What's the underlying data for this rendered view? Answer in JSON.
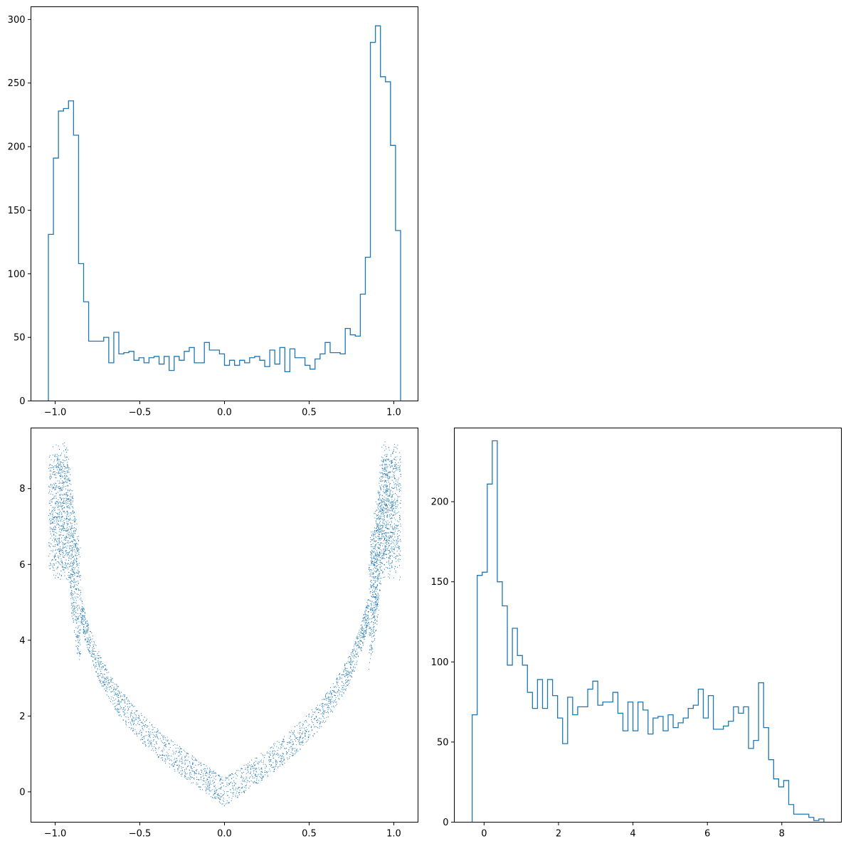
{
  "colors": {
    "series": "#1f77b4",
    "axes": "#000000",
    "background": "#ffffff"
  },
  "chart_data": [
    {
      "id": "hist_x",
      "type": "histogram",
      "title": "",
      "xlabel": "",
      "ylabel": "",
      "xlim": [
        -1.143,
        1.143
      ],
      "ylim": [
        0,
        310
      ],
      "x_ticks": [
        -1.0,
        -0.5,
        0.0,
        0.5,
        1.0
      ],
      "x_tick_labels": [
        "−1.0",
        "−0.5",
        "0.0",
        "0.5",
        "1.0"
      ],
      "y_ticks": [
        0,
        50,
        100,
        150,
        200,
        250,
        300
      ],
      "y_tick_labels": [
        "0",
        "50",
        "100",
        "150",
        "200",
        "250",
        "300"
      ],
      "bin_start": -1.04,
      "bin_end": 1.04,
      "counts": [
        131,
        191,
        228,
        230,
        236,
        209,
        108,
        78,
        47,
        47,
        47,
        50,
        30,
        54,
        37,
        38,
        39,
        32,
        34,
        30,
        34,
        35,
        29,
        35,
        24,
        35,
        32,
        39,
        42,
        30,
        30,
        46,
        40,
        40,
        37,
        28,
        32,
        28,
        32,
        30,
        34,
        35,
        32,
        27,
        40,
        29,
        42,
        23,
        41,
        34,
        34,
        28,
        25,
        33,
        37,
        46,
        38,
        38,
        37,
        57,
        52,
        51,
        84,
        113,
        282,
        295,
        255,
        251,
        201,
        134
      ]
    },
    {
      "id": "scatter_xy",
      "type": "scatter",
      "title": "",
      "xlabel": "",
      "ylabel": "",
      "xlim": [
        -1.143,
        1.143
      ],
      "ylim": [
        -0.8,
        9.6
      ],
      "x_ticks": [
        -1.0,
        -0.5,
        0.0,
        0.5,
        1.0
      ],
      "x_tick_labels": [
        "−1.0",
        "−0.5",
        "0.0",
        "0.5",
        "1.0"
      ],
      "y_ticks": [
        0,
        2,
        4,
        6,
        8
      ],
      "y_tick_labels": [
        "0",
        "2",
        "4",
        "6",
        "8"
      ],
      "shape": "y ≈ 3·√(1/(1−x²) − 1) band, point density follows the two histograms"
    },
    {
      "id": "hist_y",
      "type": "histogram",
      "title": "",
      "xlabel": "",
      "ylabel": "",
      "xlim": [
        -0.8,
        9.6
      ],
      "ylim": [
        0,
        246
      ],
      "x_ticks": [
        0,
        2,
        4,
        6,
        8
      ],
      "x_tick_labels": [
        "0",
        "2",
        "4",
        "6",
        "8"
      ],
      "y_ticks": [
        0,
        50,
        100,
        150,
        200
      ],
      "y_tick_labels": [
        "0",
        "50",
        "100",
        "150",
        "200"
      ],
      "bin_start": -0.32,
      "bin_end": 9.13,
      "counts": [
        67,
        154,
        156,
        211,
        238,
        150,
        135,
        98,
        121,
        104,
        98,
        81,
        71,
        89,
        71,
        89,
        79,
        65,
        49,
        78,
        67,
        72,
        72,
        83,
        88,
        73,
        75,
        75,
        81,
        68,
        57,
        75,
        57,
        75,
        70,
        55,
        65,
        66,
        57,
        67,
        59,
        62,
        65,
        71,
        73,
        83,
        65,
        79,
        58,
        58,
        60,
        63,
        72,
        68,
        72,
        46,
        51,
        87,
        59,
        39,
        27,
        22,
        26,
        11,
        5,
        5,
        5,
        3,
        1,
        2
      ]
    }
  ]
}
